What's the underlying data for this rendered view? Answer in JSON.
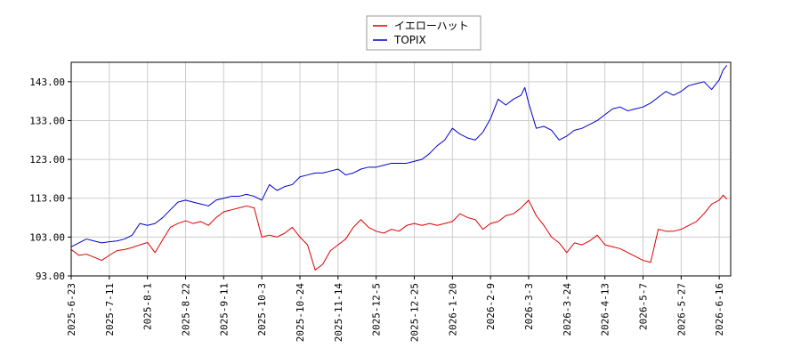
{
  "chart_data": {
    "type": "line",
    "title": "",
    "xlabel": "",
    "ylabel": "",
    "grid": true,
    "legend": {
      "placement": "top-center"
    },
    "x_ticks": [
      "2025-6-23",
      "2025-7-11",
      "2025-8-1",
      "2025-8-22",
      "2025-9-11",
      "2025-10-3",
      "2025-10-24",
      "2025-11-14",
      "2025-12-5",
      "2025-12-25",
      "2026-1-20",
      "2026-2-9",
      "2026-3-3",
      "2026-3-24",
      "2026-4-13",
      "2026-5-7",
      "2026-5-27",
      "2026-6-16"
    ],
    "xlim": [
      0,
      17.3
    ],
    "y_ticks": [
      "93.00",
      "103.00",
      "113.00",
      "123.00",
      "133.00",
      "143.00"
    ],
    "ylim": [
      93,
      148
    ],
    "series": [
      {
        "name": "イエローハット",
        "color": "#dd0000",
        "points": [
          [
            0,
            99.8
          ],
          [
            0.2,
            98.3
          ],
          [
            0.4,
            98.6
          ],
          [
            0.6,
            97.8
          ],
          [
            0.8,
            97.0
          ],
          [
            1.0,
            98.3
          ],
          [
            1.2,
            99.5
          ],
          [
            1.4,
            99.8
          ],
          [
            1.6,
            100.3
          ],
          [
            1.8,
            101.0
          ],
          [
            2.0,
            101.6
          ],
          [
            2.2,
            99.0
          ],
          [
            2.4,
            102.3
          ],
          [
            2.6,
            105.5
          ],
          [
            2.8,
            106.5
          ],
          [
            3.0,
            107.2
          ],
          [
            3.2,
            106.5
          ],
          [
            3.4,
            107.0
          ],
          [
            3.6,
            106.0
          ],
          [
            3.8,
            108.0
          ],
          [
            4.0,
            109.5
          ],
          [
            4.2,
            110.0
          ],
          [
            4.4,
            110.5
          ],
          [
            4.6,
            111.0
          ],
          [
            4.8,
            110.5
          ],
          [
            5.0,
            103.0
          ],
          [
            5.2,
            103.5
          ],
          [
            5.4,
            103.0
          ],
          [
            5.6,
            104.0
          ],
          [
            5.8,
            105.5
          ],
          [
            6.0,
            103.0
          ],
          [
            6.2,
            101.0
          ],
          [
            6.4,
            94.5
          ],
          [
            6.6,
            96.0
          ],
          [
            6.8,
            99.5
          ],
          [
            7.0,
            101.0
          ],
          [
            7.2,
            102.5
          ],
          [
            7.4,
            105.5
          ],
          [
            7.6,
            107.5
          ],
          [
            7.8,
            105.5
          ],
          [
            8.0,
            104.5
          ],
          [
            8.2,
            104.0
          ],
          [
            8.4,
            105.0
          ],
          [
            8.6,
            104.5
          ],
          [
            8.8,
            106.0
          ],
          [
            9.0,
            106.5
          ],
          [
            9.2,
            106.0
          ],
          [
            9.4,
            106.5
          ],
          [
            9.6,
            106.0
          ],
          [
            9.8,
            106.5
          ],
          [
            10.0,
            107.0
          ],
          [
            10.2,
            109.0
          ],
          [
            10.4,
            108.0
          ],
          [
            10.6,
            107.5
          ],
          [
            10.8,
            105.0
          ],
          [
            11.0,
            106.5
          ],
          [
            11.2,
            107.0
          ],
          [
            11.4,
            108.5
          ],
          [
            11.6,
            109.0
          ],
          [
            11.8,
            110.5
          ],
          [
            12.0,
            112.5
          ],
          [
            12.2,
            108.5
          ],
          [
            12.4,
            106.0
          ],
          [
            12.6,
            103.0
          ],
          [
            12.8,
            101.5
          ],
          [
            13.0,
            99.0
          ],
          [
            13.2,
            101.5
          ],
          [
            13.4,
            101.0
          ],
          [
            13.6,
            102.0
          ],
          [
            13.8,
            103.5
          ],
          [
            14.0,
            101.0
          ],
          [
            14.2,
            100.5
          ],
          [
            14.4,
            100.0
          ],
          [
            14.6,
            99.0
          ],
          [
            14.8,
            98.0
          ],
          [
            15.0,
            97.0
          ],
          [
            15.2,
            96.5
          ],
          [
            15.4,
            105.0
          ],
          [
            15.6,
            104.5
          ],
          [
            15.8,
            104.5
          ],
          [
            16.0,
            105.0
          ],
          [
            16.2,
            106.0
          ],
          [
            16.4,
            107.0
          ],
          [
            16.6,
            109.0
          ],
          [
            16.8,
            111.5
          ],
          [
            17.0,
            112.5
          ],
          [
            17.1,
            113.8
          ],
          [
            17.2,
            112.8
          ]
        ]
      },
      {
        "name": "TOPIX",
        "color": "#0000cc",
        "points": [
          [
            0,
            100.5
          ],
          [
            0.2,
            101.5
          ],
          [
            0.4,
            102.5
          ],
          [
            0.6,
            102.0
          ],
          [
            0.8,
            101.5
          ],
          [
            1.0,
            101.8
          ],
          [
            1.2,
            102.0
          ],
          [
            1.4,
            102.5
          ],
          [
            1.6,
            103.5
          ],
          [
            1.8,
            106.5
          ],
          [
            2.0,
            106.0
          ],
          [
            2.2,
            106.5
          ],
          [
            2.4,
            108.0
          ],
          [
            2.6,
            110.0
          ],
          [
            2.8,
            112.0
          ],
          [
            3.0,
            112.5
          ],
          [
            3.2,
            112.0
          ],
          [
            3.4,
            111.5
          ],
          [
            3.6,
            111.0
          ],
          [
            3.8,
            112.5
          ],
          [
            4.0,
            113.0
          ],
          [
            4.2,
            113.5
          ],
          [
            4.4,
            113.5
          ],
          [
            4.6,
            114.0
          ],
          [
            4.8,
            113.5
          ],
          [
            5.0,
            112.5
          ],
          [
            5.2,
            116.5
          ],
          [
            5.4,
            115.0
          ],
          [
            5.6,
            116.0
          ],
          [
            5.8,
            116.5
          ],
          [
            6.0,
            118.5
          ],
          [
            6.2,
            119.0
          ],
          [
            6.4,
            119.5
          ],
          [
            6.6,
            119.5
          ],
          [
            6.8,
            120.0
          ],
          [
            7.0,
            120.5
          ],
          [
            7.2,
            119.0
          ],
          [
            7.4,
            119.5
          ],
          [
            7.6,
            120.5
          ],
          [
            7.8,
            121.0
          ],
          [
            8.0,
            121.0
          ],
          [
            8.2,
            121.5
          ],
          [
            8.4,
            122.0
          ],
          [
            8.6,
            122.0
          ],
          [
            8.8,
            122.0
          ],
          [
            9.0,
            122.5
          ],
          [
            9.2,
            123.0
          ],
          [
            9.4,
            124.5
          ],
          [
            9.6,
            126.5
          ],
          [
            9.8,
            128.0
          ],
          [
            10.0,
            131.0
          ],
          [
            10.2,
            129.5
          ],
          [
            10.4,
            128.5
          ],
          [
            10.6,
            128.0
          ],
          [
            10.8,
            130.0
          ],
          [
            11.0,
            133.5
          ],
          [
            11.2,
            138.5
          ],
          [
            11.4,
            137.0
          ],
          [
            11.6,
            138.5
          ],
          [
            11.8,
            139.5
          ],
          [
            11.9,
            141.5
          ],
          [
            12.0,
            137.5
          ],
          [
            12.2,
            131.0
          ],
          [
            12.4,
            131.5
          ],
          [
            12.6,
            130.5
          ],
          [
            12.8,
            128.0
          ],
          [
            13.0,
            129.0
          ],
          [
            13.2,
            130.5
          ],
          [
            13.4,
            131.0
          ],
          [
            13.6,
            132.0
          ],
          [
            13.8,
            133.0
          ],
          [
            14.0,
            134.5
          ],
          [
            14.2,
            136.0
          ],
          [
            14.4,
            136.5
          ],
          [
            14.6,
            135.5
          ],
          [
            14.8,
            136.0
          ],
          [
            15.0,
            136.5
          ],
          [
            15.2,
            137.5
          ],
          [
            15.4,
            139.0
          ],
          [
            15.6,
            140.5
          ],
          [
            15.8,
            139.5
          ],
          [
            16.0,
            140.5
          ],
          [
            16.2,
            142.0
          ],
          [
            16.4,
            142.5
          ],
          [
            16.6,
            143.0
          ],
          [
            16.8,
            141.0
          ],
          [
            17.0,
            143.5
          ],
          [
            17.1,
            146.0
          ],
          [
            17.2,
            147.2
          ]
        ]
      }
    ]
  }
}
